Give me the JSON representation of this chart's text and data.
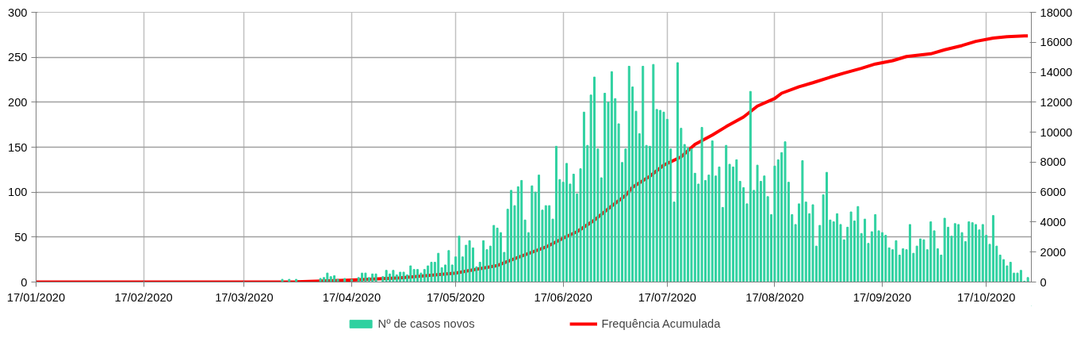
{
  "chart_data": {
    "type": "bar",
    "xlim": [
      "2020-01-17",
      "2020-10-30"
    ],
    "xticks": [
      {
        "value": "2020-01-17",
        "label": "17/01/2020"
      },
      {
        "value": "2020-02-17",
        "label": "17/02/2020"
      },
      {
        "value": "2020-03-17",
        "label": "17/03/2020"
      },
      {
        "value": "2020-04-17",
        "label": "17/04/2020"
      },
      {
        "value": "2020-05-17",
        "label": "17/05/2020"
      },
      {
        "value": "2020-06-17",
        "label": "17/06/2020"
      },
      {
        "value": "2020-07-17",
        "label": "17/07/2020"
      },
      {
        "value": "2020-08-17",
        "label": "17/08/2020"
      },
      {
        "value": "2020-09-17",
        "label": "17/09/2020"
      },
      {
        "value": "2020-10-17",
        "label": "17/10/2020"
      }
    ],
    "ylim": [
      0,
      300
    ],
    "yticks": [
      0,
      50,
      100,
      150,
      200,
      250,
      300
    ],
    "y2lim": [
      0,
      18000
    ],
    "y2ticks": [
      0,
      2000,
      4000,
      6000,
      8000,
      10000,
      12000,
      14000,
      16000,
      18000
    ],
    "grid": true,
    "legend": "bottom",
    "series": [
      {
        "name": "Nº de casos novos",
        "color": "#2fd1a0",
        "x": [
          "2020-03-28",
          "2020-03-29",
          "2020-03-30",
          "2020-03-31",
          "2020-04-01",
          "2020-04-02",
          "2020-04-03",
          "2020-04-04",
          "2020-04-05",
          "2020-04-06",
          "2020-04-07",
          "2020-04-08",
          "2020-04-09",
          "2020-04-10",
          "2020-04-11",
          "2020-04-12",
          "2020-04-13",
          "2020-04-14",
          "2020-04-15",
          "2020-04-16",
          "2020-04-17",
          "2020-04-18",
          "2020-04-19",
          "2020-04-20",
          "2020-04-21",
          "2020-04-22",
          "2020-04-23",
          "2020-04-24",
          "2020-04-25",
          "2020-04-26",
          "2020-04-27",
          "2020-04-28",
          "2020-04-29",
          "2020-04-30",
          "2020-05-01",
          "2020-05-02",
          "2020-05-03",
          "2020-05-04",
          "2020-05-05",
          "2020-05-06",
          "2020-05-07",
          "2020-05-08",
          "2020-05-09",
          "2020-05-10",
          "2020-05-11",
          "2020-05-12",
          "2020-05-13",
          "2020-05-14",
          "2020-05-15",
          "2020-05-16",
          "2020-05-17",
          "2020-05-18",
          "2020-05-19",
          "2020-05-20",
          "2020-05-21",
          "2020-05-22",
          "2020-05-23",
          "2020-05-24",
          "2020-05-25",
          "2020-05-26",
          "2020-05-27",
          "2020-05-28",
          "2020-05-29",
          "2020-05-30",
          "2020-05-31",
          "2020-06-01",
          "2020-06-02",
          "2020-06-03",
          "2020-06-04",
          "2020-06-05",
          "2020-06-06",
          "2020-06-07",
          "2020-06-08",
          "2020-06-09",
          "2020-06-10",
          "2020-06-11",
          "2020-06-12",
          "2020-06-13",
          "2020-06-14",
          "2020-06-15",
          "2020-06-16",
          "2020-06-17",
          "2020-06-18",
          "2020-06-19",
          "2020-06-20",
          "2020-06-21",
          "2020-06-22",
          "2020-06-23",
          "2020-06-24",
          "2020-06-25",
          "2020-06-26",
          "2020-06-27",
          "2020-06-28",
          "2020-06-29",
          "2020-06-30",
          "2020-07-01",
          "2020-07-02",
          "2020-07-03",
          "2020-07-04",
          "2020-07-05",
          "2020-07-06",
          "2020-07-07",
          "2020-07-08",
          "2020-07-09",
          "2020-07-10",
          "2020-07-11",
          "2020-07-12",
          "2020-07-13",
          "2020-07-14",
          "2020-07-15",
          "2020-07-16",
          "2020-07-17",
          "2020-07-18",
          "2020-07-19",
          "2020-07-20",
          "2020-07-21",
          "2020-07-22",
          "2020-07-23",
          "2020-07-24",
          "2020-07-25",
          "2020-07-26",
          "2020-07-27",
          "2020-07-28",
          "2020-07-29",
          "2020-07-30",
          "2020-07-31",
          "2020-08-01",
          "2020-08-02",
          "2020-08-03",
          "2020-08-04",
          "2020-08-05",
          "2020-08-06",
          "2020-08-07",
          "2020-08-08",
          "2020-08-09",
          "2020-08-10",
          "2020-08-11",
          "2020-08-12",
          "2020-08-13",
          "2020-08-14",
          "2020-08-15",
          "2020-08-16",
          "2020-08-17",
          "2020-08-18",
          "2020-08-19",
          "2020-08-20",
          "2020-08-21",
          "2020-08-22",
          "2020-08-23",
          "2020-08-24",
          "2020-08-25",
          "2020-08-26",
          "2020-08-27",
          "2020-08-28",
          "2020-08-29",
          "2020-08-30",
          "2020-08-31",
          "2020-09-01",
          "2020-09-02",
          "2020-09-03",
          "2020-09-04",
          "2020-09-05",
          "2020-09-06",
          "2020-09-07",
          "2020-09-08",
          "2020-09-09",
          "2020-09-10",
          "2020-09-11",
          "2020-09-12",
          "2020-09-13",
          "2020-09-14",
          "2020-09-15",
          "2020-09-16",
          "2020-09-17",
          "2020-09-18",
          "2020-09-19",
          "2020-09-20",
          "2020-09-21",
          "2020-09-22",
          "2020-09-23",
          "2020-09-24",
          "2020-09-25",
          "2020-09-26",
          "2020-09-27",
          "2020-09-28",
          "2020-09-29",
          "2020-09-30",
          "2020-10-01",
          "2020-10-02",
          "2020-10-03",
          "2020-10-04",
          "2020-10-05",
          "2020-10-06",
          "2020-10-07",
          "2020-10-08",
          "2020-10-09",
          "2020-10-10",
          "2020-10-11",
          "2020-10-12",
          "2020-10-13",
          "2020-10-14",
          "2020-10-15",
          "2020-10-16",
          "2020-10-17",
          "2020-10-18",
          "2020-10-19",
          "2020-10-20",
          "2020-10-21",
          "2020-10-22",
          "2020-10-23",
          "2020-10-24",
          "2020-10-25",
          "2020-10-26",
          "2020-10-27",
          "2020-10-28",
          "2020-10-29"
        ],
        "values": [
          3,
          0,
          3,
          0,
          3,
          0,
          0,
          0,
          0,
          0,
          0,
          4,
          5,
          10,
          6,
          7,
          3,
          0,
          4,
          0,
          3,
          0,
          5,
          10,
          10,
          5,
          9,
          9,
          0,
          6,
          13,
          9,
          13,
          8,
          11,
          11,
          8,
          18,
          14,
          14,
          10,
          14,
          18,
          22,
          22,
          32,
          16,
          19,
          35,
          19,
          28,
          51,
          28,
          41,
          46,
          38,
          17,
          22,
          46,
          36,
          40,
          63,
          60,
          55,
          33,
          81,
          102,
          85,
          106,
          113,
          69,
          55,
          107,
          100,
          119,
          80,
          85,
          85,
          70,
          151,
          114,
          111,
          132,
          109,
          120,
          98,
          126,
          189,
          152,
          208,
          228,
          148,
          116,
          210,
          200,
          234,
          204,
          176,
          133,
          148,
          240,
          217,
          190,
          165,
          240,
          152,
          151,
          242,
          192,
          191,
          189,
          181,
          148,
          89,
          244,
          171,
          153,
          149,
          148,
          121,
          109,
          172,
          113,
          119,
          157,
          118,
          128,
          83,
          152,
          131,
          128,
          136,
          112,
          105,
          87,
          212,
          102,
          130,
          112,
          118,
          95,
          75,
          129,
          136,
          144,
          156,
          111,
          75,
          64,
          87,
          135,
          89,
          76,
          86,
          40,
          63,
          97,
          122,
          69,
          67,
          76,
          64,
          47,
          61,
          78,
          68,
          84,
          54,
          70,
          43,
          56,
          75,
          57,
          55,
          52,
          38,
          36,
          46,
          30,
          37,
          36,
          64,
          32,
          40,
          48,
          47,
          36,
          67,
          57,
          37,
          30,
          71,
          61,
          51,
          65,
          64,
          55,
          45,
          67,
          66,
          64,
          58,
          64,
          52,
          42,
          74,
          40,
          30,
          25,
          18,
          22,
          10,
          10,
          13,
          1,
          5
        ]
      },
      {
        "name": "Frequência Acumulada",
        "type": "line",
        "axis": "y2",
        "color": "#ff0000",
        "x": [
          "2020-01-17",
          "2020-03-15",
          "2020-04-01",
          "2020-04-17",
          "2020-05-01",
          "2020-05-17",
          "2020-05-20",
          "2020-05-29",
          "2020-06-04",
          "2020-06-12",
          "2020-06-17",
          "2020-06-21",
          "2020-06-26",
          "2020-07-01",
          "2020-07-05",
          "2020-07-07",
          "2020-07-12",
          "2020-07-16",
          "2020-07-21",
          "2020-07-25",
          "2020-07-30",
          "2020-08-03",
          "2020-08-08",
          "2020-08-12",
          "2020-08-17",
          "2020-08-19",
          "2020-08-24",
          "2020-08-28",
          "2020-09-02",
          "2020-09-06",
          "2020-09-11",
          "2020-09-15",
          "2020-09-20",
          "2020-09-24",
          "2020-10-01",
          "2020-10-05",
          "2020-10-10",
          "2020-10-14",
          "2020-10-19",
          "2020-10-23",
          "2020-10-28",
          "2020-10-29"
        ],
        "values": [
          0,
          0,
          10,
          130,
          280,
          600,
          730,
          1100,
          1650,
          2330,
          2930,
          3360,
          4130,
          5080,
          5780,
          6330,
          7060,
          7800,
          8350,
          9180,
          9810,
          10370,
          11010,
          11740,
          12250,
          12600,
          13030,
          13300,
          13670,
          13940,
          14260,
          14550,
          14770,
          15050,
          15230,
          15500,
          15780,
          16060,
          16280,
          16370,
          16420,
          16420
        ]
      }
    ]
  }
}
